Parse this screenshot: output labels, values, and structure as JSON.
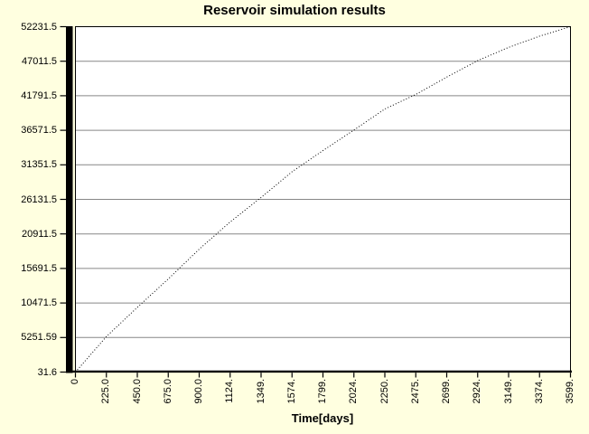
{
  "window": {
    "background": "#FFFFE0"
  },
  "chart_data": {
    "type": "line",
    "title": "Reservoir simulation results",
    "xlabel": "Time[days]",
    "ylabel": "",
    "x": [
      0,
      225,
      450,
      675,
      900,
      1124,
      1349,
      1574,
      1799,
      2024,
      2250,
      2475,
      2699,
      2924,
      3149,
      3374,
      3599
    ],
    "series": [
      {
        "name": "Reservoir simulation results",
        "line_style": "dotted",
        "color": "#000000",
        "values": [
          31.6,
          5400,
          9800,
          14100,
          18600,
          22700,
          26400,
          30300,
          33500,
          36600,
          39800,
          42000,
          44600,
          47100,
          49100,
          50800,
          52231.5
        ]
      }
    ],
    "x_tick_labels": [
      "0",
      "225.0",
      "450.0",
      "675.0",
      "900.0",
      "1124.",
      "1349.",
      "1574.",
      "1799.",
      "2024.",
      "2250.",
      "2475.",
      "2699.",
      "2924.",
      "3149.",
      "3374.",
      "3599."
    ],
    "y_tick_labels": [
      "52231.5",
      "47011.5",
      "41791.5",
      "36571.5",
      "31351.5",
      "26131.5",
      "20911.5",
      "15691.5",
      "10471.5",
      "5251.59",
      "31.6"
    ],
    "y_ticks": [
      52231.5,
      47011.5,
      41791.5,
      36571.5,
      31351.5,
      26131.5,
      20911.5,
      15691.5,
      10471.5,
      5251.59,
      31.6
    ],
    "xlim": [
      0,
      3599
    ],
    "ylim": [
      31.6,
      52231.5
    ],
    "grid": "horizontal",
    "legend_position": "none",
    "colors": {
      "page_bg": "#FFFFE0",
      "plot_bg": "#FFFFFF",
      "grid": "#878787",
      "axis": "#000000",
      "curve": "#000000",
      "text": "#000000"
    }
  }
}
